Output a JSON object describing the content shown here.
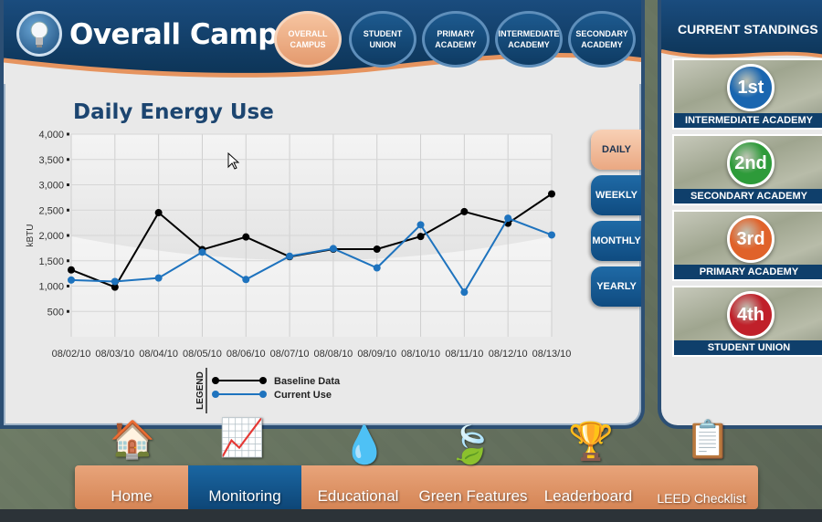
{
  "header": {
    "title": "Overall Campus",
    "tabs": [
      {
        "label": "OVERALL\nCAMPUS",
        "active": true
      },
      {
        "label": "STUDENT\nUNION",
        "active": false
      },
      {
        "label": "PRIMARY\nACADEMY",
        "active": false
      },
      {
        "label": "INTERMEDIATE\nACADEMY",
        "active": false
      },
      {
        "label": "SECONDARY\nACADEMY",
        "active": false
      }
    ]
  },
  "period_buttons": [
    {
      "label": "DAILY",
      "active": true
    },
    {
      "label": "WEEKLY",
      "active": false
    },
    {
      "label": "MONTHLY",
      "active": false
    },
    {
      "label": "YEARLY",
      "active": false
    }
  ],
  "chart_data": {
    "type": "line",
    "title": "Daily Energy Use",
    "ylabel": "kBTU",
    "xlabel": "",
    "ylim": [
      0,
      4000
    ],
    "yticks": [
      "500",
      "1,000",
      "1,500",
      "2,000",
      "2,500",
      "3,000",
      "3,500",
      "4,000"
    ],
    "ytick_values": [
      500,
      1000,
      1500,
      2000,
      2500,
      3000,
      3500,
      4000
    ],
    "categories": [
      "08/02/10",
      "08/03/10",
      "08/04/10",
      "08/05/10",
      "08/06/10",
      "08/07/10",
      "08/08/10",
      "08/09/10",
      "08/10/10",
      "08/11/10",
      "08/12/10",
      "08/13/10"
    ],
    "series": [
      {
        "name": "Baseline Data",
        "color": "#000000",
        "values": [
          1320,
          980,
          2450,
          1720,
          1970,
          1580,
          1730,
          1730,
          1980,
          2470,
          2240,
          2820
        ]
      },
      {
        "name": "Current Use",
        "color": "#1e73be",
        "values": [
          1120,
          1090,
          1160,
          1670,
          1130,
          1590,
          1740,
          1360,
          2210,
          880,
          2340,
          2010
        ]
      }
    ],
    "legend_title": "LEGEND",
    "grid": true
  },
  "standings": {
    "title": "CURRENT STANDINGS",
    "items": [
      {
        "rank": "1st",
        "name": "INTERMEDIATE ACADEMY",
        "color": "#1a66b0"
      },
      {
        "rank": "2nd",
        "name": "SECONDARY ACADEMY",
        "color": "#2e9b3a"
      },
      {
        "rank": "3rd",
        "name": "PRIMARY ACADEMY",
        "color": "#e0622a"
      },
      {
        "rank": "4th",
        "name": "STUDENT UNION",
        "color": "#c0202a"
      }
    ]
  },
  "bottom_nav": [
    {
      "label": "Home",
      "icon": "house-icon",
      "active": false
    },
    {
      "label": "Monitoring",
      "icon": "chart-bulb-icon",
      "active": true
    },
    {
      "label": "Educational",
      "icon": "water-drop-icon",
      "active": false
    },
    {
      "label": "Green Features",
      "icon": "leaf-icon",
      "active": false
    },
    {
      "label": "Leaderboard",
      "icon": "trophy-icon",
      "active": false
    },
    {
      "label": "LEED Checklist",
      "icon": "clipboard-check-icon",
      "active": false
    }
  ]
}
